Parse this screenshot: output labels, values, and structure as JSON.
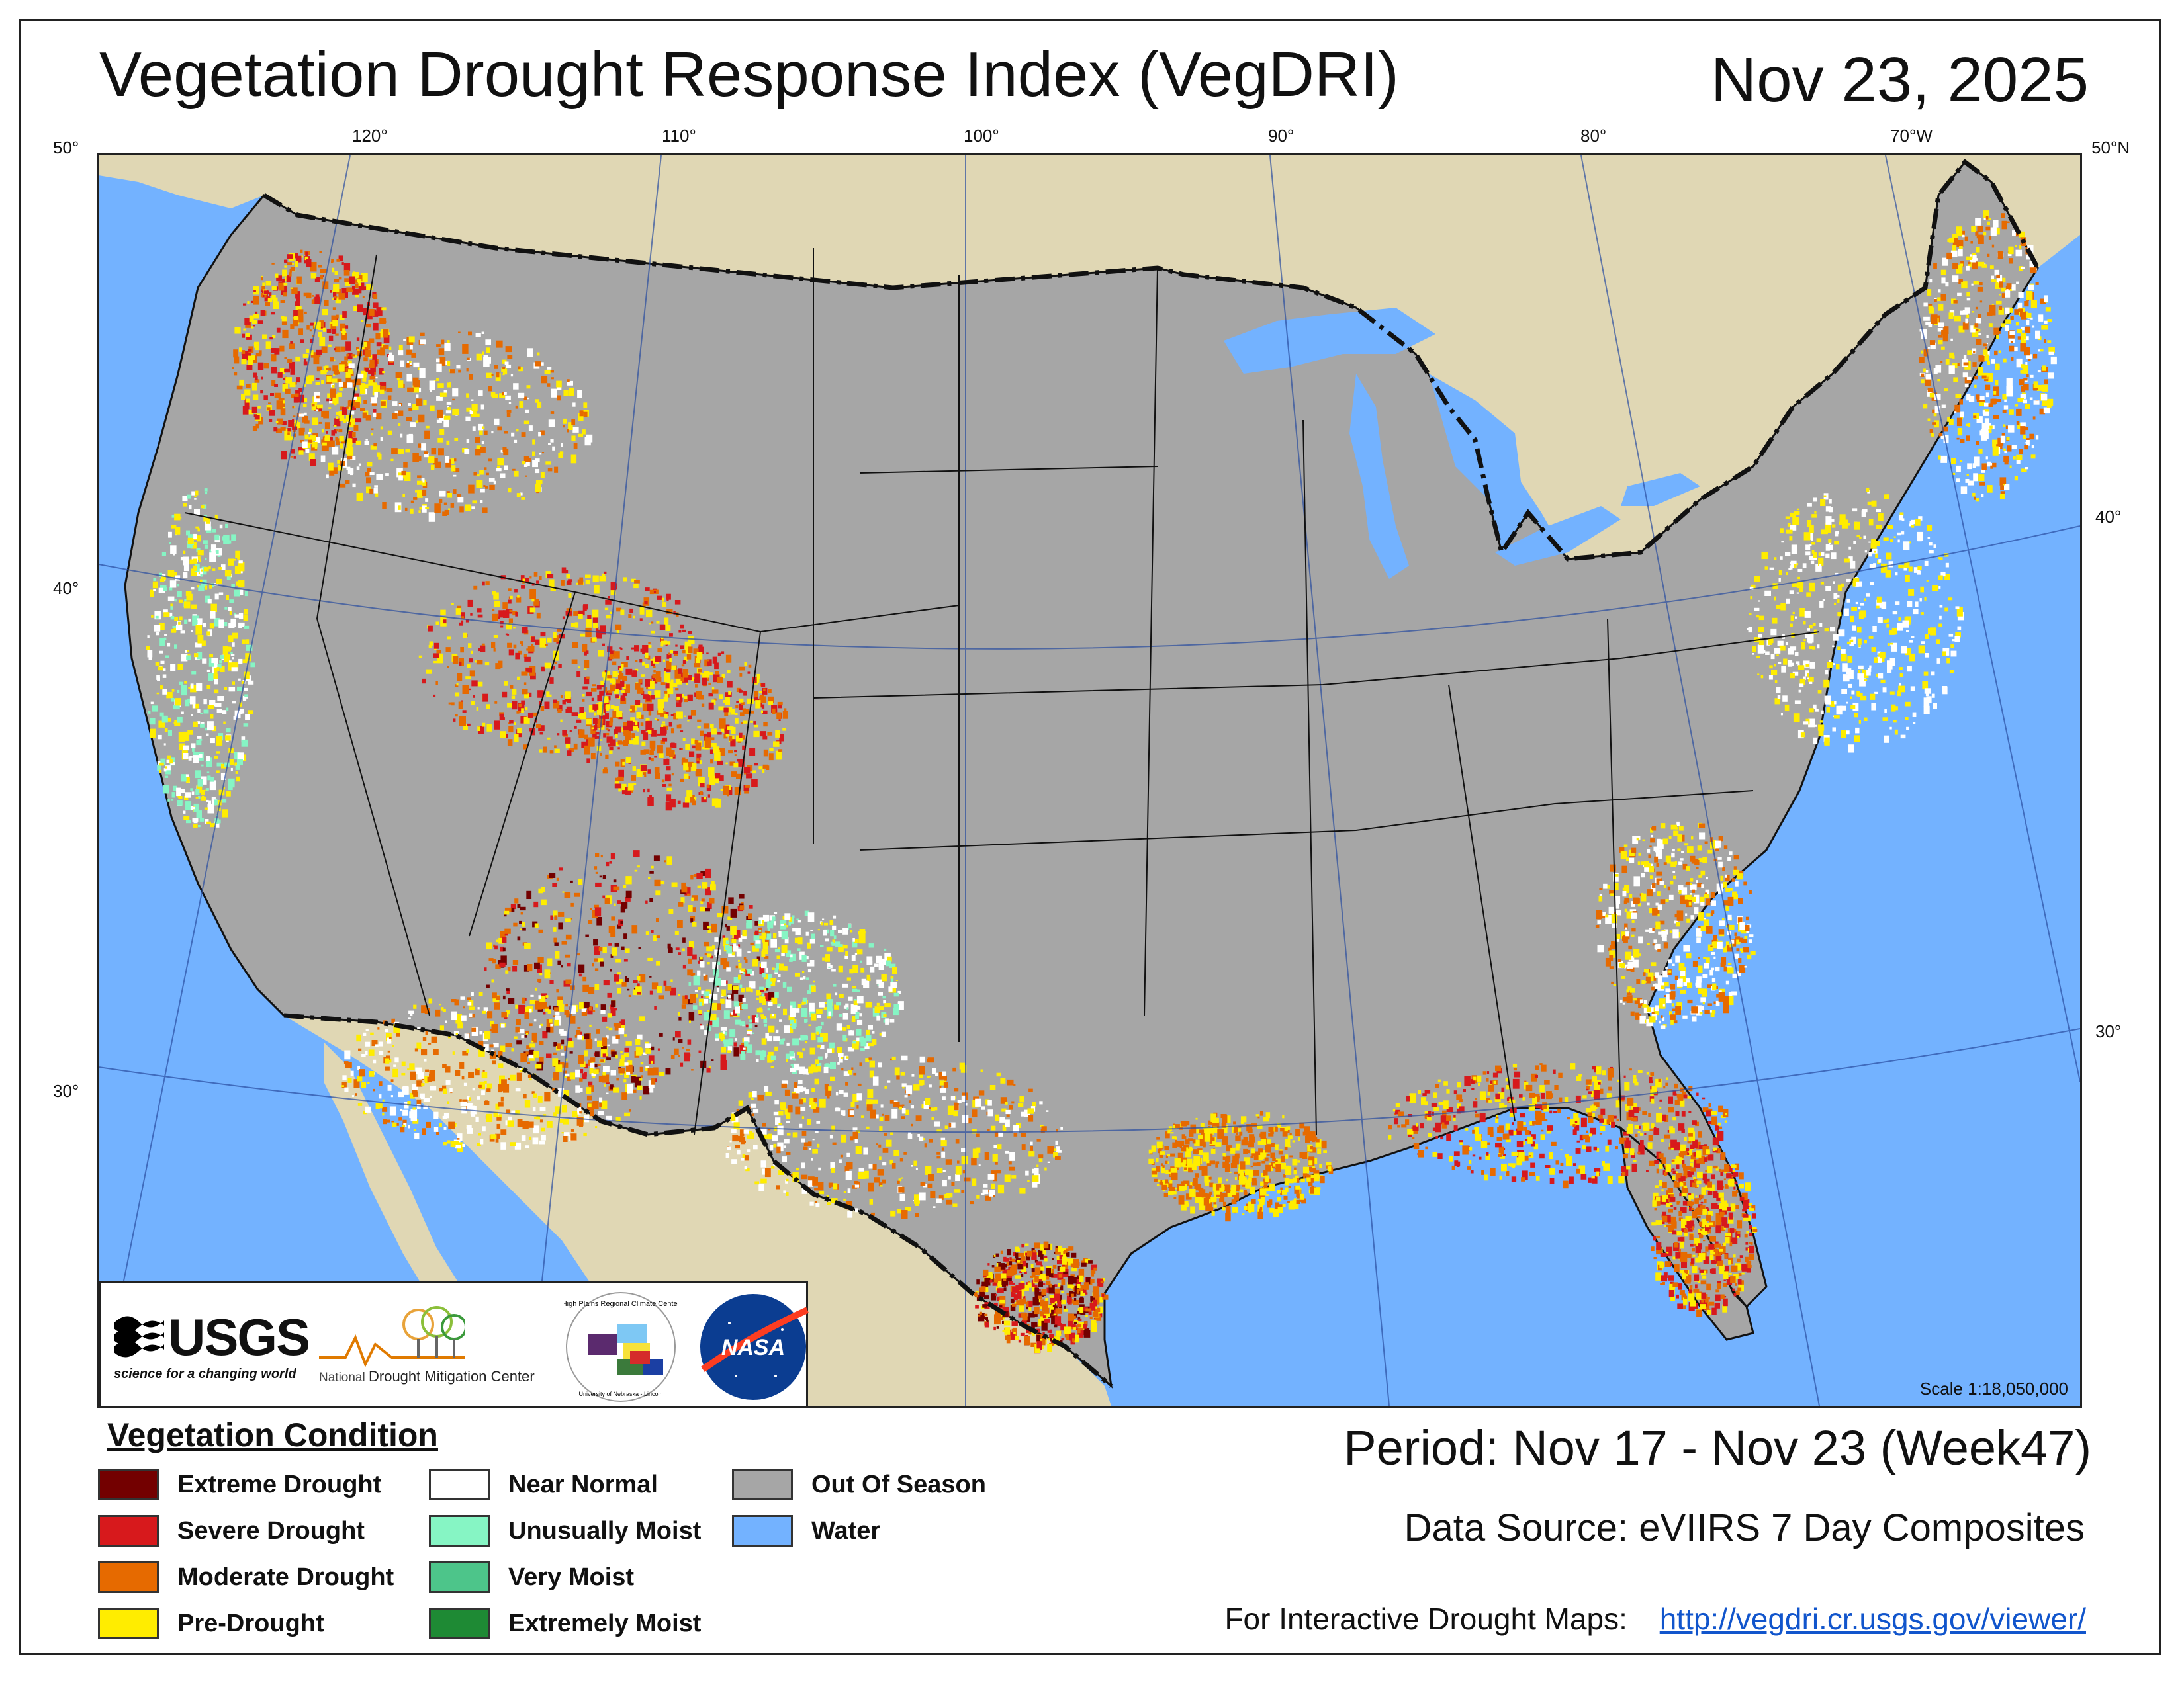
{
  "header": {
    "title": "Vegetation Drought Response Index (VegDRI)",
    "date": "Nov 23, 2025"
  },
  "graticule": {
    "longitudes": [
      "120°",
      "110°",
      "100°",
      "90°",
      "80°",
      "70°W"
    ],
    "latitudes_left": [
      "50°",
      "40°",
      "30°"
    ],
    "latitudes_right": [
      "50°N",
      "40°",
      "30°"
    ]
  },
  "map": {
    "scale": "Scale 1:18,050,000",
    "colors": {
      "out_of_season": "#a6a6a6",
      "water": "#73b2ff",
      "land_outside": "#e0d7b4",
      "extreme_drought": "#730000",
      "severe_drought": "#d7191c",
      "moderate_drought": "#e66a00",
      "pre_drought": "#ffed00",
      "near_normal": "#ffffff",
      "unusually_moist": "#86f5c4",
      "very_moist": "#4dc58a",
      "extremely_moist": "#1e8a34"
    }
  },
  "logos": {
    "usgs_word": "USGS",
    "usgs_tagline": "science for a changing world",
    "ndmc_prefix": "National",
    "ndmc_main": "Drought Mitigation Center",
    "hprcc_name": "High Plains Regional Climate Center",
    "hprcc_sub": "University of Nebraska - Lincoln",
    "nasa": "NASA"
  },
  "legend": {
    "title": "Vegetation Condition",
    "items": [
      {
        "label": "Extreme Drought",
        "color": "#730000"
      },
      {
        "label": "Severe Drought",
        "color": "#d7191c"
      },
      {
        "label": "Moderate Drought",
        "color": "#e66a00"
      },
      {
        "label": "Pre-Drought",
        "color": "#ffed00"
      },
      {
        "label": "Near Normal",
        "color": "#ffffff"
      },
      {
        "label": "Unusually Moist",
        "color": "#86f5c4"
      },
      {
        "label": "Very Moist",
        "color": "#4dc58a"
      },
      {
        "label": "Extremely Moist",
        "color": "#1e8a34"
      },
      {
        "label": "Out Of Season",
        "color": "#a6a6a6"
      },
      {
        "label": "Water",
        "color": "#73b2ff"
      }
    ]
  },
  "info": {
    "period": "Period:  Nov 17 - Nov 23 (Week47)",
    "source": "Data Source:  eVIIRS 7 Day Composites",
    "interactive_label": "For Interactive Drought Maps:",
    "interactive_url": "http://vegdri.cr.usgs.gov/viewer/"
  }
}
